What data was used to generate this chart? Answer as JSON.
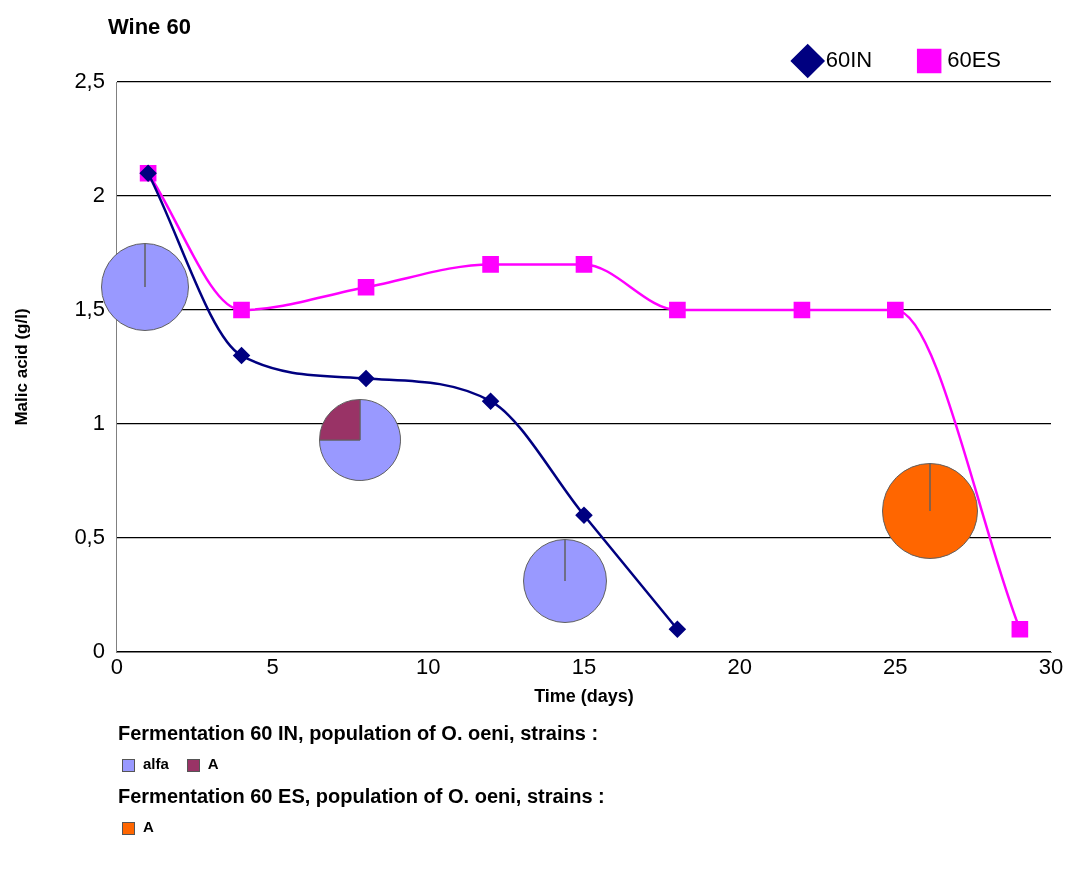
{
  "chart_data": [
    {
      "type": "line",
      "title": "Wine 60",
      "xlabel": "Time (days)",
      "ylabel": "Malic acid (g/l)",
      "xlim": [
        0,
        30
      ],
      "xticks": [
        0,
        5,
        10,
        15,
        20,
        25,
        30
      ],
      "ylim": [
        0,
        2.5
      ],
      "yticks": [
        {
          "value": 0,
          "label": "0"
        },
        {
          "value": 0.5,
          "label": "0,5"
        },
        {
          "value": 1,
          "label": "1"
        },
        {
          "value": 1.5,
          "label": "1,5"
        },
        {
          "value": 2,
          "label": "2"
        },
        {
          "value": 2.5,
          "label": "2,5"
        }
      ],
      "grid": "y",
      "legend": "top right",
      "series": [
        {
          "name": "60IN",
          "color": "#000080",
          "marker": "diamond",
          "x": [
            1,
            4,
            8,
            12,
            15,
            18
          ],
          "values": [
            2.1,
            1.3,
            1.2,
            1.1,
            0.6,
            0.1
          ]
        },
        {
          "name": "60ES",
          "color": "#ff00ff",
          "marker": "square",
          "x": [
            1,
            4,
            8,
            12,
            15,
            18,
            22,
            25,
            29
          ],
          "values": [
            2.1,
            1.5,
            1.6,
            1.7,
            1.7,
            1.5,
            1.5,
            1.5,
            0.1
          ]
        }
      ],
      "annotations": [
        "Fermentation  60 IN, population of O. oeni, strains :",
        "Fermentation  60 ES, population of O. oeni, strains :"
      ]
    },
    {
      "type": "pie",
      "categories": [
        null
      ],
      "values": [
        100
      ],
      "colors": [
        "#9999ff"
      ]
    },
    {
      "type": "pie",
      "categories": [
        "alfa",
        "A"
      ],
      "values": [
        75,
        25
      ],
      "colors": [
        "#9999ff",
        "#993366"
      ],
      "legend": "bottom"
    },
    {
      "type": "pie",
      "categories": [
        null
      ],
      "values": [
        100
      ],
      "colors": [
        "#9999ff"
      ]
    },
    {
      "type": "pie",
      "categories": [
        "A"
      ],
      "values": [
        100
      ],
      "colors": [
        "#ff6600"
      ],
      "legend": "bottom"
    }
  ]
}
